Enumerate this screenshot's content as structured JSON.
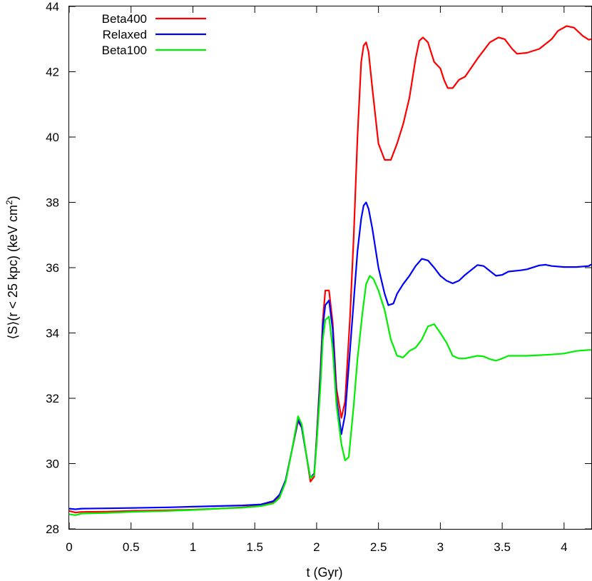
{
  "chart_data": {
    "type": "line",
    "title": "",
    "xlabel": "t (Gyr)",
    "ylabel": "⟨S⟩(r < 25 kpc) (keV cm",
    "ylabel_superscript": "2",
    "ylabel_suffix": ")",
    "xlim": [
      0,
      4.22
    ],
    "ylim": [
      28,
      44
    ],
    "xticks": [
      0,
      0.5,
      1,
      1.5,
      2,
      2.5,
      3,
      3.5,
      4
    ],
    "xtick_labels": [
      "0",
      "0.5",
      "1",
      "1.5",
      "2",
      "2.5",
      "3",
      "3.5",
      "4"
    ],
    "yticks": [
      28,
      30,
      32,
      34,
      36,
      38,
      40,
      42,
      44
    ],
    "ytick_labels": [
      "28",
      "30",
      "32",
      "34",
      "36",
      "38",
      "40",
      "42",
      "44"
    ],
    "grid": false,
    "legend_position": "top-left",
    "series": [
      {
        "name": "Beta400",
        "color": "#ff0000",
        "points": [
          [
            0,
            28.55
          ],
          [
            0.05,
            28.5
          ],
          [
            0.1,
            28.52
          ],
          [
            0.3,
            28.53
          ],
          [
            0.5,
            28.55
          ],
          [
            0.8,
            28.57
          ],
          [
            1.0,
            28.59
          ],
          [
            1.2,
            28.62
          ],
          [
            1.4,
            28.66
          ],
          [
            1.55,
            28.72
          ],
          [
            1.65,
            28.82
          ],
          [
            1.7,
            29.0
          ],
          [
            1.75,
            29.5
          ],
          [
            1.8,
            30.4
          ],
          [
            1.85,
            31.3
          ],
          [
            1.88,
            31.1
          ],
          [
            1.92,
            30.2
          ],
          [
            1.95,
            29.45
          ],
          [
            1.98,
            29.6
          ],
          [
            2.0,
            30.8
          ],
          [
            2.03,
            32.8
          ],
          [
            2.05,
            34.4
          ],
          [
            2.07,
            35.3
          ],
          [
            2.1,
            35.3
          ],
          [
            2.13,
            34.3
          ],
          [
            2.16,
            32.3
          ],
          [
            2.2,
            31.4
          ],
          [
            2.23,
            31.9
          ],
          [
            2.27,
            34.5
          ],
          [
            2.3,
            37.0
          ],
          [
            2.33,
            40.0
          ],
          [
            2.36,
            42.3
          ],
          [
            2.38,
            42.8
          ],
          [
            2.4,
            42.9
          ],
          [
            2.42,
            42.6
          ],
          [
            2.45,
            41.5
          ],
          [
            2.5,
            39.8
          ],
          [
            2.55,
            39.3
          ],
          [
            2.6,
            39.3
          ],
          [
            2.65,
            39.8
          ],
          [
            2.7,
            40.4
          ],
          [
            2.75,
            41.2
          ],
          [
            2.8,
            42.4
          ],
          [
            2.83,
            42.95
          ],
          [
            2.86,
            43.05
          ],
          [
            2.9,
            42.9
          ],
          [
            2.95,
            42.3
          ],
          [
            3.0,
            42.1
          ],
          [
            3.03,
            41.75
          ],
          [
            3.06,
            41.5
          ],
          [
            3.1,
            41.5
          ],
          [
            3.15,
            41.75
          ],
          [
            3.2,
            41.85
          ],
          [
            3.3,
            42.4
          ],
          [
            3.4,
            42.9
          ],
          [
            3.47,
            43.05
          ],
          [
            3.52,
            43.0
          ],
          [
            3.58,
            42.7
          ],
          [
            3.62,
            42.55
          ],
          [
            3.7,
            42.58
          ],
          [
            3.8,
            42.7
          ],
          [
            3.9,
            43.0
          ],
          [
            3.95,
            43.25
          ],
          [
            4.02,
            43.4
          ],
          [
            4.08,
            43.35
          ],
          [
            4.15,
            43.1
          ],
          [
            4.2,
            42.98
          ],
          [
            4.22,
            43.0
          ]
        ]
      },
      {
        "name": "Relaxed",
        "color": "#0000ff",
        "points": [
          [
            0,
            28.62
          ],
          [
            0.05,
            28.6
          ],
          [
            0.1,
            28.62
          ],
          [
            0.3,
            28.63
          ],
          [
            0.5,
            28.64
          ],
          [
            0.8,
            28.66
          ],
          [
            1.0,
            28.68
          ],
          [
            1.2,
            28.7
          ],
          [
            1.4,
            28.72
          ],
          [
            1.55,
            28.75
          ],
          [
            1.65,
            28.85
          ],
          [
            1.7,
            29.05
          ],
          [
            1.75,
            29.5
          ],
          [
            1.8,
            30.4
          ],
          [
            1.85,
            31.35
          ],
          [
            1.88,
            31.1
          ],
          [
            1.92,
            30.2
          ],
          [
            1.95,
            29.55
          ],
          [
            1.98,
            29.7
          ],
          [
            2.0,
            30.7
          ],
          [
            2.03,
            32.6
          ],
          [
            2.05,
            34.2
          ],
          [
            2.07,
            34.85
          ],
          [
            2.1,
            35.0
          ],
          [
            2.13,
            34.1
          ],
          [
            2.16,
            32.0
          ],
          [
            2.2,
            30.9
          ],
          [
            2.23,
            31.5
          ],
          [
            2.27,
            33.5
          ],
          [
            2.3,
            35.0
          ],
          [
            2.33,
            36.5
          ],
          [
            2.36,
            37.5
          ],
          [
            2.38,
            37.9
          ],
          [
            2.4,
            38.0
          ],
          [
            2.42,
            37.8
          ],
          [
            2.45,
            37.2
          ],
          [
            2.5,
            36.0
          ],
          [
            2.55,
            35.2
          ],
          [
            2.58,
            34.85
          ],
          [
            2.62,
            34.9
          ],
          [
            2.65,
            35.2
          ],
          [
            2.7,
            35.5
          ],
          [
            2.75,
            35.75
          ],
          [
            2.8,
            36.05
          ],
          [
            2.85,
            36.27
          ],
          [
            2.9,
            36.22
          ],
          [
            2.95,
            36.0
          ],
          [
            3.0,
            35.75
          ],
          [
            3.05,
            35.6
          ],
          [
            3.1,
            35.52
          ],
          [
            3.15,
            35.6
          ],
          [
            3.2,
            35.78
          ],
          [
            3.3,
            36.08
          ],
          [
            3.35,
            36.05
          ],
          [
            3.4,
            35.9
          ],
          [
            3.45,
            35.75
          ],
          [
            3.5,
            35.78
          ],
          [
            3.55,
            35.88
          ],
          [
            3.65,
            35.92
          ],
          [
            3.7,
            35.95
          ],
          [
            3.8,
            36.07
          ],
          [
            3.85,
            36.09
          ],
          [
            3.9,
            36.05
          ],
          [
            4.0,
            36.02
          ],
          [
            4.1,
            36.02
          ],
          [
            4.2,
            36.05
          ],
          [
            4.22,
            36.1
          ]
        ]
      },
      {
        "name": "Beta100",
        "color": "#00ee00",
        "points": [
          [
            0,
            28.45
          ],
          [
            0.05,
            28.42
          ],
          [
            0.1,
            28.47
          ],
          [
            0.3,
            28.49
          ],
          [
            0.5,
            28.52
          ],
          [
            0.8,
            28.55
          ],
          [
            1.0,
            28.58
          ],
          [
            1.2,
            28.62
          ],
          [
            1.4,
            28.65
          ],
          [
            1.55,
            28.7
          ],
          [
            1.65,
            28.78
          ],
          [
            1.7,
            28.95
          ],
          [
            1.75,
            29.45
          ],
          [
            1.8,
            30.4
          ],
          [
            1.85,
            31.45
          ],
          [
            1.88,
            31.2
          ],
          [
            1.92,
            30.2
          ],
          [
            1.95,
            29.55
          ],
          [
            1.98,
            29.65
          ],
          [
            2.0,
            30.6
          ],
          [
            2.03,
            32.3
          ],
          [
            2.05,
            33.8
          ],
          [
            2.07,
            34.4
          ],
          [
            2.1,
            34.5
          ],
          [
            2.13,
            33.5
          ],
          [
            2.16,
            31.8
          ],
          [
            2.2,
            30.6
          ],
          [
            2.23,
            30.1
          ],
          [
            2.26,
            30.2
          ],
          [
            2.3,
            31.8
          ],
          [
            2.33,
            33.2
          ],
          [
            2.37,
            34.6
          ],
          [
            2.4,
            35.5
          ],
          [
            2.43,
            35.75
          ],
          [
            2.46,
            35.65
          ],
          [
            2.5,
            35.3
          ],
          [
            2.55,
            34.7
          ],
          [
            2.6,
            33.8
          ],
          [
            2.65,
            33.3
          ],
          [
            2.7,
            33.25
          ],
          [
            2.75,
            33.45
          ],
          [
            2.8,
            33.55
          ],
          [
            2.85,
            33.8
          ],
          [
            2.9,
            34.2
          ],
          [
            2.95,
            34.27
          ],
          [
            3.0,
            34.0
          ],
          [
            3.05,
            33.7
          ],
          [
            3.1,
            33.3
          ],
          [
            3.15,
            33.22
          ],
          [
            3.2,
            33.22
          ],
          [
            3.3,
            33.3
          ],
          [
            3.35,
            33.28
          ],
          [
            3.4,
            33.2
          ],
          [
            3.45,
            33.15
          ],
          [
            3.5,
            33.22
          ],
          [
            3.55,
            33.3
          ],
          [
            3.65,
            33.3
          ],
          [
            3.7,
            33.3
          ],
          [
            3.8,
            33.32
          ],
          [
            3.85,
            33.33
          ],
          [
            3.9,
            33.34
          ],
          [
            4.0,
            33.37
          ],
          [
            4.1,
            33.45
          ],
          [
            4.2,
            33.48
          ],
          [
            4.22,
            33.48
          ]
        ]
      }
    ]
  }
}
